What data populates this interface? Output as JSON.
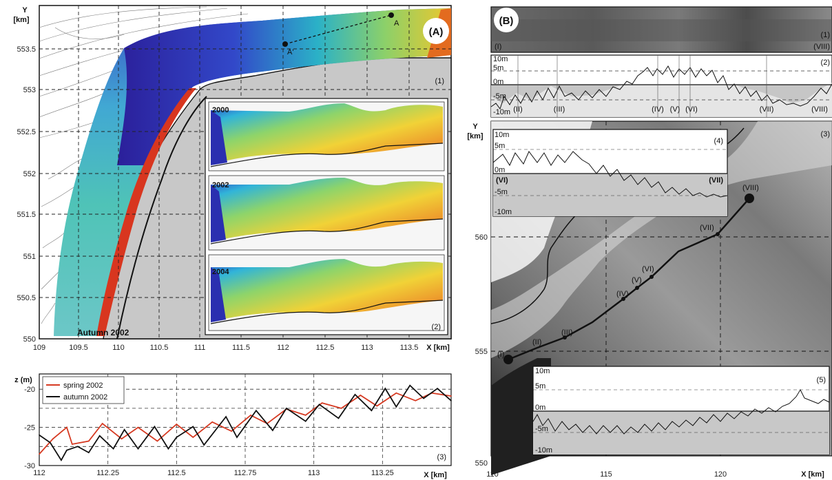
{
  "panel_a": {
    "badge": "(A)",
    "ylabel": "Y",
    "yunit": "[km]",
    "xunit_label": "X [km]",
    "map_number": "(1)",
    "map_caption": "Autumn 2002",
    "inset_number": "(2)",
    "years": [
      "2000",
      "2002",
      "2004"
    ],
    "transect_labels": [
      "A",
      "A'"
    ],
    "y_ticks": [
      "553.5",
      "553",
      "552.5",
      "552",
      "551.5",
      "551",
      "550.5",
      "550"
    ],
    "x_ticks": [
      "109",
      "109.5",
      "110",
      "110.5",
      "111",
      "111.5",
      "112",
      "112.5",
      "113",
      "113.5"
    ]
  },
  "profile_a": {
    "number": "(3)",
    "ylabel": "z (m)",
    "xunit_label": "X [km]",
    "legend": [
      "spring 2002",
      "autumn 2002"
    ],
    "colors": {
      "spring": "#d63a22",
      "autumn": "#111111"
    }
  },
  "panel_b": {
    "badge": "(B)",
    "ylabel": "Y",
    "yunit": "[km]",
    "xunit_label": "X [km]",
    "sonar_number": "(1)",
    "sonar_start": "(I)",
    "sonar_end": "(VIII)",
    "profile_number": "(2)",
    "profile_depths": [
      "10m",
      "5m",
      "0m",
      "-5m",
      "-10m"
    ],
    "profile_points": [
      "(II)",
      "(III)",
      "(IV)",
      "(V)",
      "(VI)",
      "(VII)",
      "(VIII)"
    ],
    "map_number": "(3)",
    "inset4_number": "(4)",
    "inset4_depths": [
      "10m",
      "5m",
      "0m",
      "-5m",
      "-10m"
    ],
    "inset4_start": "(VI)",
    "inset4_end": "(VII)",
    "inset5_number": "(5)",
    "inset5_depths": [
      "10m",
      "5m",
      "0m",
      "-5m",
      "-10m"
    ],
    "track_points": [
      "(I)",
      "(II)",
      "(III)",
      "(IV)",
      "(V)",
      "(VI)",
      "(VII)",
      "(VIII)"
    ],
    "y_ticks": [
      "560",
      "555",
      "550"
    ],
    "x_ticks": [
      "110",
      "115",
      "120"
    ]
  },
  "chart_data": {
    "type": "line",
    "title": "",
    "xlabel": "X [km]",
    "ylabel": "z (m)",
    "xlim": [
      112,
      113.5
    ],
    "ylim": [
      -30,
      -18
    ],
    "x_ticks": [
      112,
      112.25,
      112.5,
      112.75,
      113,
      113.25
    ],
    "y_ticks": [
      -20,
      -25,
      -30
    ],
    "grid": true,
    "legend_position": "top-left",
    "series": [
      {
        "name": "spring 2002",
        "color": "#d63a22",
        "x": [
          112.0,
          112.05,
          112.1,
          112.12,
          112.18,
          112.23,
          112.3,
          112.36,
          112.43,
          112.5,
          112.56,
          112.63,
          112.7,
          112.77,
          112.83,
          112.9,
          112.97,
          113.03,
          113.1,
          113.17,
          113.23,
          113.3,
          113.37,
          113.43,
          113.5
        ],
        "y": [
          -28.5,
          -26.5,
          -25,
          -27.2,
          -26.8,
          -24.5,
          -26.5,
          -25,
          -26.8,
          -24.6,
          -26.3,
          -24.3,
          -25.5,
          -23.4,
          -24.5,
          -22.6,
          -23.4,
          -21.8,
          -22.5,
          -20.8,
          -22.2,
          -20.5,
          -21.5,
          -20.5,
          -20.9
        ]
      },
      {
        "name": "autumn 2002",
        "color": "#111111",
        "x": [
          112.0,
          112.04,
          112.08,
          112.1,
          112.14,
          112.18,
          112.22,
          112.27,
          112.31,
          112.36,
          112.42,
          112.47,
          112.5,
          112.56,
          112.6,
          112.68,
          112.72,
          112.79,
          112.85,
          112.9,
          112.97,
          113.02,
          113.09,
          113.15,
          113.21,
          113.26,
          113.3,
          113.35,
          113.4,
          113.45,
          113.5
        ],
        "y": [
          -26,
          -27,
          -29.3,
          -28,
          -27.5,
          -28.3,
          -26.1,
          -27.8,
          -25.3,
          -27.8,
          -24.9,
          -27.8,
          -26.3,
          -24.9,
          -27.3,
          -23.6,
          -26.3,
          -22.8,
          -25.4,
          -22.5,
          -24.2,
          -22.0,
          -23.8,
          -20.7,
          -22.8,
          -19.9,
          -22.3,
          -19.5,
          -21.2,
          -19.9,
          -21.5
        ]
      }
    ]
  }
}
